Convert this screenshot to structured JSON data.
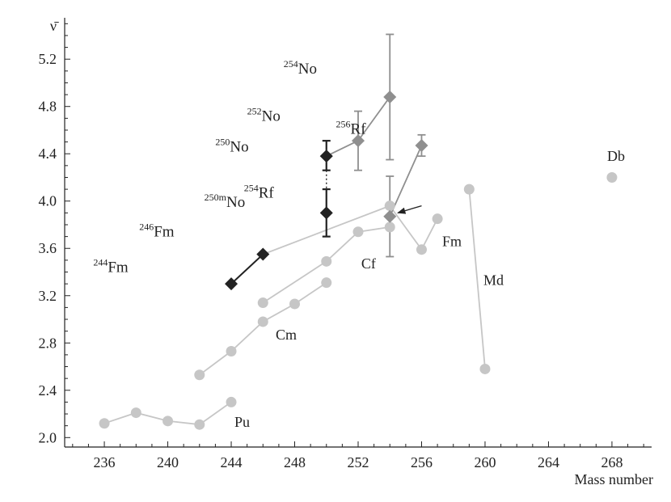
{
  "chart_data": {
    "type": "scatter",
    "xlabel": "Mass number",
    "ylabel": "ν̄",
    "xlim": [
      233.5,
      270.5
    ],
    "ylim": [
      1.92,
      5.55
    ],
    "x_ticks": [
      236,
      240,
      244,
      248,
      252,
      256,
      260,
      264,
      268
    ],
    "y_ticks": [
      2.0,
      2.4,
      2.8,
      3.2,
      3.6,
      4.0,
      4.4,
      4.8,
      5.2
    ],
    "grid": false,
    "colors": {
      "light": "#c6c6c6",
      "medium": "#8f8f8f",
      "dark": "#222222"
    },
    "series": [
      {
        "name": "Pu",
        "color": "light",
        "marker": "circle",
        "connect": true,
        "points": [
          [
            236,
            2.12
          ],
          [
            238,
            2.21
          ],
          [
            240,
            2.14
          ],
          [
            242,
            2.11
          ],
          [
            244,
            2.3
          ]
        ]
      },
      {
        "name": "Cm",
        "color": "light",
        "marker": "circle",
        "connect": true,
        "points": [
          [
            242,
            2.53
          ],
          [
            244,
            2.73
          ],
          [
            246,
            2.98
          ],
          [
            248,
            3.13
          ],
          [
            250,
            3.31
          ]
        ]
      },
      {
        "name": "Cf",
        "color": "light",
        "marker": "circle",
        "connect": true,
        "points": [
          [
            246,
            3.14
          ],
          [
            250,
            3.49
          ],
          [
            252,
            3.74
          ],
          [
            254,
            3.78
          ]
        ]
      },
      {
        "name": "Fm",
        "color": "light",
        "marker": "circle",
        "connect": true,
        "points": [
          [
            254,
            3.96
          ],
          [
            256,
            3.59
          ],
          [
            257,
            3.85
          ]
        ]
      },
      {
        "name": "Md",
        "color": "light",
        "marker": "circle",
        "connect": true,
        "points": [
          [
            259,
            4.1
          ],
          [
            260,
            2.58
          ]
        ]
      },
      {
        "name": "Db",
        "color": "light",
        "marker": "circle",
        "connect": false,
        "points": [
          [
            268,
            4.2
          ]
        ]
      },
      {
        "name": "",
        "color": "light",
        "marker": "none",
        "connect": true,
        "points": [
          [
            246,
            3.55
          ],
          [
            254,
            3.96
          ]
        ]
      },
      {
        "name": "No",
        "color": "medium",
        "marker": "diamond",
        "connect": true,
        "points": [
          [
            250,
            4.38
          ],
          [
            252,
            4.51
          ],
          [
            254,
            4.88
          ]
        ]
      },
      {
        "name": "Rf",
        "color": "medium",
        "marker": "diamond",
        "connect": true,
        "points": [
          [
            254,
            3.87
          ],
          [
            256,
            4.47
          ]
        ]
      },
      {
        "name": "Fm",
        "color": "dark",
        "marker": "diamond",
        "connect": true,
        "points": [
          [
            244,
            3.3
          ],
          [
            246,
            3.55
          ]
        ]
      },
      {
        "name": "No",
        "color": "dark",
        "marker": "diamond",
        "connect": false,
        "points": [
          [
            250,
            4.38
          ],
          [
            250,
            3.9
          ]
        ]
      }
    ],
    "error_bars": [
      {
        "x": 250,
        "low": 4.26,
        "high": 4.51,
        "color": "dark"
      },
      {
        "x": 250,
        "low": 3.7,
        "high": 4.1,
        "color": "dark"
      },
      {
        "x": 252,
        "low": 4.26,
        "high": 4.76,
        "color": "medium"
      },
      {
        "x": 254,
        "low": 4.35,
        "high": 5.41,
        "color": "medium"
      },
      {
        "x": 254,
        "low": 3.53,
        "high": 4.21,
        "color": "medium"
      },
      {
        "x": 256,
        "low": 4.38,
        "high": 4.56,
        "color": "medium"
      }
    ],
    "dotted_links": [
      {
        "x": 250,
        "from": 4.26,
        "to": 4.1
      }
    ],
    "series_labels": [
      {
        "text": "Pu",
        "x": 244.2,
        "y": 2.09
      },
      {
        "text": "Cm",
        "x": 246.8,
        "y": 2.83
      },
      {
        "text": "Cf",
        "x": 252.2,
        "y": 3.43
      },
      {
        "text": "Fm",
        "x": 257.3,
        "y": 3.62
      },
      {
        "text": "Md",
        "x": 259.9,
        "y": 3.29
      },
      {
        "text": "Db",
        "x": 267.7,
        "y": 4.34
      }
    ],
    "nuclide_labels": [
      {
        "mass": "254",
        "element": "No",
        "x": 247.3,
        "y": 5.08
      },
      {
        "mass": "252",
        "element": "No",
        "x": 245.0,
        "y": 4.68
      },
      {
        "mass": "250",
        "element": "No",
        "x": 243.0,
        "y": 4.42
      },
      {
        "mass": "250m",
        "element": "No",
        "x": 242.3,
        "y": 3.95
      },
      {
        "mass": "246",
        "element": "Fm",
        "x": 238.2,
        "y": 3.7
      },
      {
        "mass": "244",
        "element": "Fm",
        "x": 235.3,
        "y": 3.4
      },
      {
        "mass": "256",
        "element": "Rf",
        "x": 250.6,
        "y": 4.57
      },
      {
        "mass": "254",
        "element": "Rf",
        "x": 244.8,
        "y": 4.03
      }
    ],
    "arrows": [
      {
        "from": [
          256.0,
          3.96
        ],
        "to": [
          254.5,
          3.9
        ]
      }
    ]
  }
}
